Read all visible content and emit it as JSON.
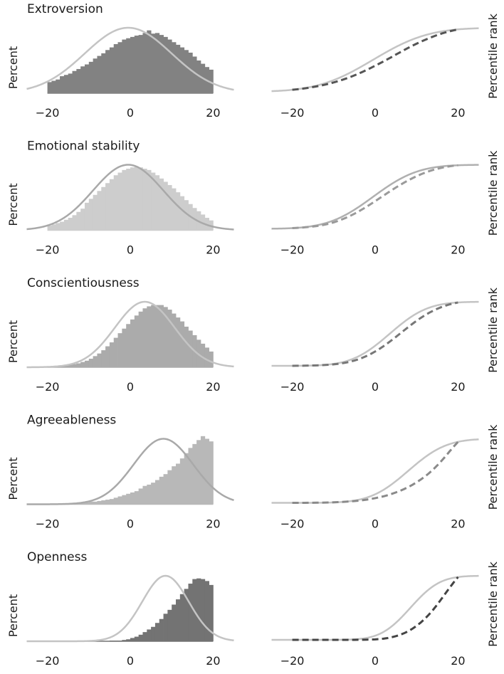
{
  "chart_data": [
    {
      "type": "bar",
      "panel": "histogram",
      "title": "Extroversion",
      "ylabel": "Percent",
      "xlabel": "",
      "xticks": [
        "−20",
        "0",
        "20"
      ],
      "xlim": [
        -25,
        25
      ],
      "bar_color": "#828282",
      "curve_color": "#c4c4c4",
      "normal_fit": {
        "mean": -0.5,
        "sd": 10.5
      },
      "bins_start": -20,
      "bin_width": 1,
      "values": [
        17,
        19,
        21,
        26,
        28,
        30,
        34,
        37,
        41,
        44,
        48,
        53,
        57,
        61,
        66,
        70,
        75,
        78,
        82,
        84,
        86,
        88,
        89,
        92,
        96,
        91,
        92,
        89,
        86,
        82,
        78,
        74,
        70,
        66,
        62,
        56,
        50,
        45,
        40,
        36,
        31,
        27,
        23,
        20,
        17
      ],
      "note": "bar heights relative to fitted curve peak (=100)"
    },
    {
      "type": "line",
      "panel": "cdf",
      "title": "",
      "ylabel": "Percentile rank",
      "xticks": [
        "−20",
        "0",
        "20"
      ],
      "xlim": [
        -25,
        25
      ],
      "series": [
        {
          "name": "normal",
          "color": "#c4c4c4",
          "style": "solid",
          "mean": -0.5,
          "sd": 10.5,
          "x_range": [
            -25,
            25
          ]
        },
        {
          "name": "empirical",
          "color": "#555555",
          "style": "dashed",
          "x_range": [
            -20,
            20
          ]
        }
      ]
    },
    {
      "type": "bar",
      "panel": "histogram",
      "title": "Emotional stability",
      "ylabel": "Percent",
      "xticks": [
        "−20",
        "0",
        "20"
      ],
      "xlim": [
        -25,
        25
      ],
      "bar_color": "#cdcdcd",
      "curve_color": "#a9a9a9",
      "normal_fit": {
        "mean": -0.5,
        "sd": 8.5
      },
      "bins_start": -20,
      "bin_width": 1,
      "values": [
        7,
        9,
        11,
        13,
        16,
        19,
        23,
        28,
        33,
        42,
        48,
        54,
        60,
        66,
        72,
        78,
        84,
        88,
        92,
        94,
        96,
        97,
        96,
        94,
        92,
        88,
        84,
        79,
        74,
        69,
        64,
        58,
        52,
        46,
        40,
        34,
        29,
        24,
        19,
        15,
        12,
        9,
        7,
        6,
        5
      ],
      "note": "bar heights relative to fitted curve peak (=100)"
    },
    {
      "type": "line",
      "panel": "cdf",
      "title": "",
      "ylabel": "Percentile rank",
      "xticks": [
        "−20",
        "0",
        "20"
      ],
      "xlim": [
        -25,
        25
      ],
      "series": [
        {
          "name": "normal",
          "color": "#b0b0b0",
          "style": "solid",
          "mean": -0.5,
          "sd": 8.5,
          "x_range": [
            -25,
            25
          ]
        },
        {
          "name": "empirical",
          "color": "#9a9a9a",
          "style": "dashed",
          "x_range": [
            -20,
            20
          ]
        }
      ]
    },
    {
      "type": "bar",
      "panel": "histogram",
      "title": "Conscientiousness",
      "ylabel": "Percent",
      "xticks": [
        "−20",
        "0",
        "20"
      ],
      "xlim": [
        -25,
        25
      ],
      "bar_color": "#ababab",
      "curve_color": "#c4c4c4",
      "normal_fit": {
        "mean": 3.5,
        "sd": 7.2
      },
      "bins_start": -20,
      "bin_width": 1,
      "values": [
        1,
        1,
        2,
        2,
        3,
        4,
        5,
        6,
        8,
        10,
        13,
        17,
        21,
        26,
        32,
        38,
        45,
        52,
        59,
        66,
        73,
        79,
        85,
        90,
        93,
        95,
        95,
        95,
        92,
        88,
        82,
        76,
        70,
        62,
        56,
        49,
        42,
        36,
        30,
        24,
        20,
        16,
        12,
        9,
        7
      ],
      "note": "bar heights relative to fitted curve peak (=100)"
    },
    {
      "type": "line",
      "panel": "cdf",
      "title": "",
      "ylabel": "Percentile rank",
      "xticks": [
        "−20",
        "0",
        "20"
      ],
      "xlim": [
        -25,
        25
      ],
      "series": [
        {
          "name": "normal",
          "color": "#c4c4c4",
          "style": "solid",
          "mean": 3.5,
          "sd": 7.2,
          "x_range": [
            -25,
            25
          ]
        },
        {
          "name": "empirical",
          "color": "#777777",
          "style": "dashed",
          "x_range": [
            -20,
            20
          ]
        }
      ]
    },
    {
      "type": "bar",
      "panel": "histogram",
      "title": "Agreeableness",
      "ylabel": "Percent",
      "xticks": [
        "−20",
        "0",
        "20"
      ],
      "xlim": [
        -25,
        25
      ],
      "bar_color": "#b8b8b8",
      "curve_color": "#a9a9a9",
      "normal_fit": {
        "mean": 8.0,
        "sd": 7.2
      },
      "bins_start": -20,
      "bin_width": 1,
      "values": [
        0,
        0,
        0,
        1,
        1,
        1,
        1,
        2,
        2,
        3,
        4,
        4,
        5,
        6,
        7,
        8,
        10,
        12,
        14,
        16,
        18,
        20,
        24,
        28,
        30,
        33,
        37,
        42,
        46,
        52,
        58,
        62,
        70,
        78,
        86,
        92,
        98,
        104,
        100,
        96,
        92,
        86,
        76,
        70,
        60
      ],
      "note": "bar heights relative to fitted curve peak (=100)"
    },
    {
      "type": "line",
      "panel": "cdf",
      "title": "",
      "ylabel": "Percentile rank",
      "xticks": [
        "−20",
        "0",
        "20"
      ],
      "xlim": [
        -25,
        25
      ],
      "series": [
        {
          "name": "normal",
          "color": "#c4c4c4",
          "style": "solid",
          "mean": 8.0,
          "sd": 7.2,
          "x_range": [
            -25,
            25
          ]
        },
        {
          "name": "empirical",
          "color": "#8a8a8a",
          "style": "dashed",
          "x_range": [
            -20,
            20
          ]
        }
      ]
    },
    {
      "type": "bar",
      "panel": "histogram",
      "title": "Openness",
      "ylabel": "Percent",
      "xticks": [
        "−20",
        "0",
        "20"
      ],
      "xlim": [
        -25,
        25
      ],
      "bar_color": "#737373",
      "curve_color": "#c4c4c4",
      "normal_fit": {
        "mean": 8.5,
        "sd": 5.6
      },
      "bins_start": -20,
      "bin_width": 1,
      "values": [
        0,
        0,
        0,
        0,
        0,
        0,
        0,
        0,
        0,
        0,
        0,
        0,
        0,
        0,
        0,
        1,
        1,
        1,
        2,
        3,
        5,
        7,
        10,
        14,
        18,
        22,
        28,
        34,
        42,
        48,
        56,
        64,
        72,
        80,
        88,
        95,
        96,
        95,
        92,
        86,
        80,
        74,
        64,
        14,
        6
      ],
      "note": "bar heights relative to fitted curve peak (=100)"
    },
    {
      "type": "line",
      "panel": "cdf",
      "title": "",
      "ylabel": "Percentile rank",
      "xticks": [
        "−20",
        "0",
        "20"
      ],
      "xlim": [
        -25,
        25
      ],
      "series": [
        {
          "name": "normal",
          "color": "#c4c4c4",
          "style": "solid",
          "mean": 8.5,
          "sd": 5.6,
          "x_range": [
            -25,
            25
          ]
        },
        {
          "name": "empirical",
          "color": "#444444",
          "style": "dashed",
          "x_range": [
            -20,
            20
          ]
        }
      ]
    }
  ]
}
